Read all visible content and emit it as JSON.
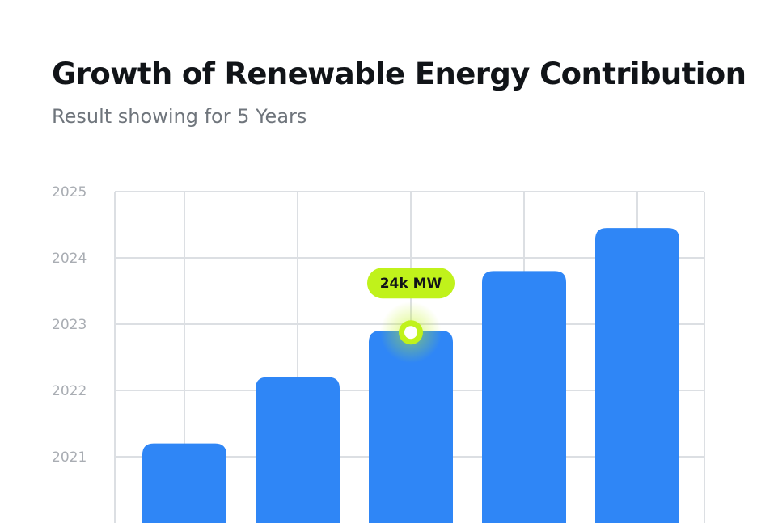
{
  "header": {
    "title": "Growth of Renewable Energy Contribution",
    "subtitle": "Result showing for 5 Years"
  },
  "chart_data": {
    "type": "bar",
    "title": "Growth of Renewable Energy Contribution",
    "subtitle": "Result showing for 5 Years",
    "xlabel": "",
    "ylabel": "",
    "y_ticks": [
      "2025",
      "2024",
      "2023",
      "2022",
      "2021"
    ],
    "ylim": [
      2020.0,
      2025.0
    ],
    "values": [
      2021.2,
      2022.2,
      2022.9,
      2023.8,
      2024.45
    ],
    "grid": true,
    "highlight": {
      "index": 2,
      "label": "24k MW"
    },
    "colors": {
      "bar": "#2f86f6",
      "highlight": "#c0f21b",
      "grid": "#dcdfe3",
      "tick": "#a9adb3"
    }
  }
}
